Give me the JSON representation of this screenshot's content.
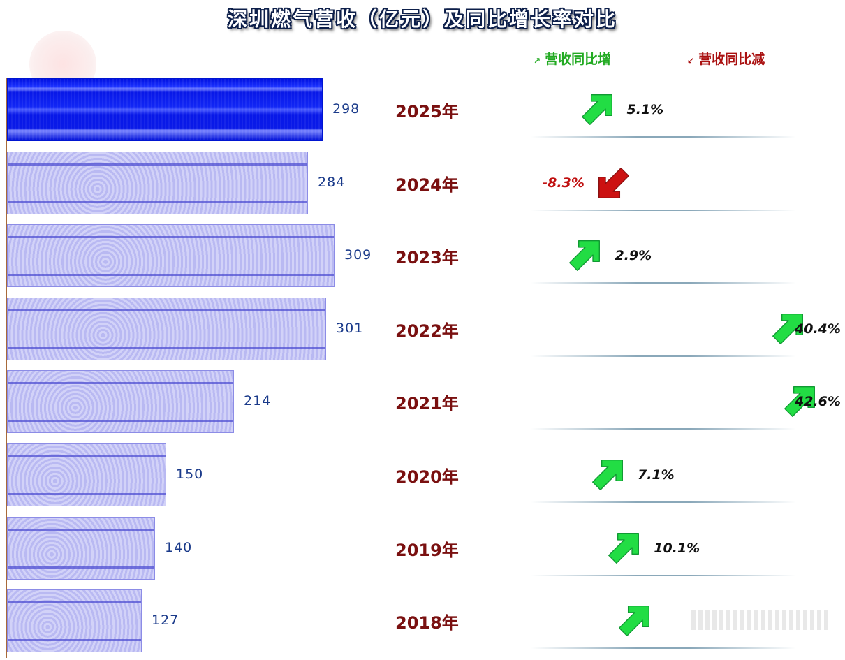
{
  "chart_data": {
    "type": "bar",
    "title": "深圳燃气营收（亿元）及同比增长率对比",
    "orientation": "horizontal",
    "categories": [
      "2025年",
      "2024年",
      "2023年",
      "2022年",
      "2021年",
      "2020年",
      "2019年",
      "2018年"
    ],
    "values": [
      298,
      284,
      309,
      301,
      214,
      150,
      140,
      127
    ],
    "growth_labels": [
      "5.1%",
      "-8.3%",
      "2.9%",
      "40.4%",
      "42.6%",
      "7.1%",
      "10.1%",
      ""
    ],
    "growth_values": [
      5.1,
      -8.3,
      2.9,
      40.4,
      42.6,
      7.1,
      10.1,
      null
    ],
    "arrow_direction": [
      "up",
      "down",
      "up",
      "up",
      "up",
      "up",
      "up",
      "up"
    ],
    "legend": [
      {
        "label": "营收同比增",
        "color": "#22aa22"
      },
      {
        "label": "营收同比减",
        "color": "#aa1111"
      }
    ],
    "legend_position": "top-right",
    "xlim": [
      0,
      309
    ],
    "grid": false,
    "colors": {
      "bar": "#c6c6f5",
      "bar_latest": "#0a1ae8",
      "year": "#7a1010",
      "up": "#22dd44",
      "down": "#cc1111"
    }
  }
}
